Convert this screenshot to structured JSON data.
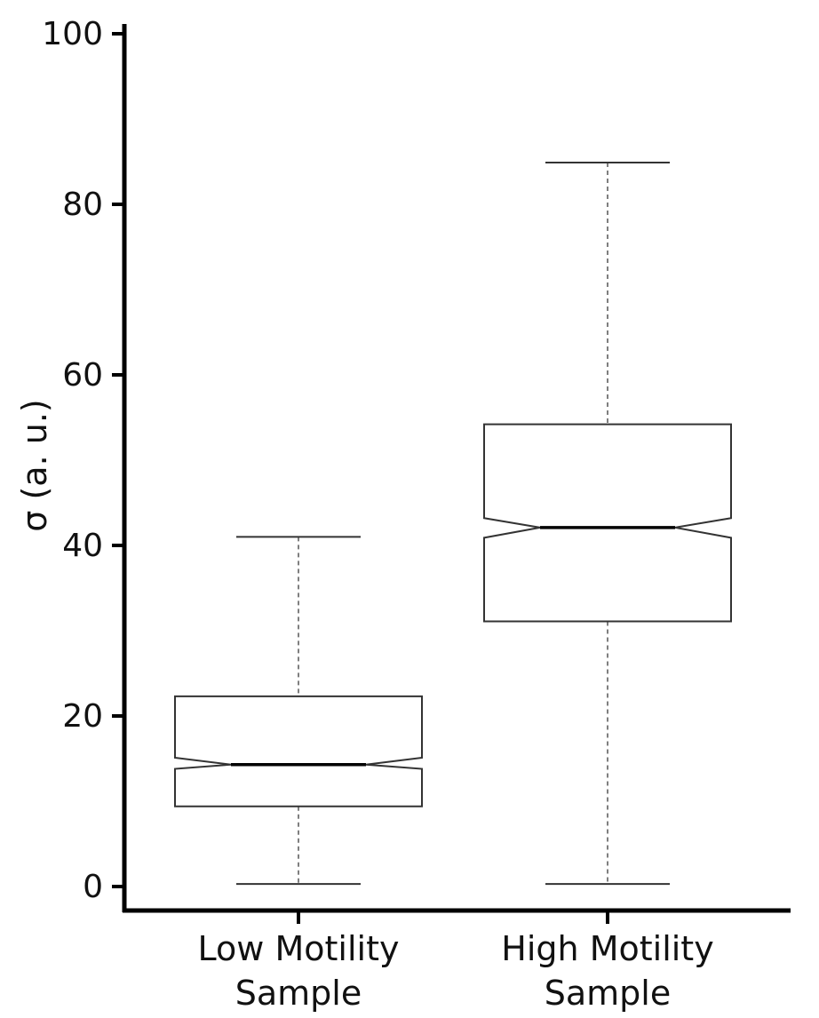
{
  "chart_data": {
    "type": "boxplot",
    "notched": true,
    "title": "",
    "xlabel": "",
    "ylabel": "σ (a. u.)",
    "ylim": [
      0,
      100
    ],
    "yticks": [
      0,
      20,
      40,
      60,
      80,
      100
    ],
    "grid": false,
    "categories": [
      [
        "Low Motility",
        "Sample"
      ],
      [
        "High Motility",
        "Sample"
      ]
    ],
    "boxes": [
      {
        "min": 0.3,
        "q1": 9.4,
        "median": 14.3,
        "q3": 22.3,
        "max": 41.0,
        "notch_low": 13.8,
        "notch_high": 15.1
      },
      {
        "min": 0.3,
        "q1": 31.1,
        "median": 42.1,
        "q3": 54.2,
        "max": 84.9,
        "notch_low": 40.9,
        "notch_high": 43.2
      }
    ]
  }
}
